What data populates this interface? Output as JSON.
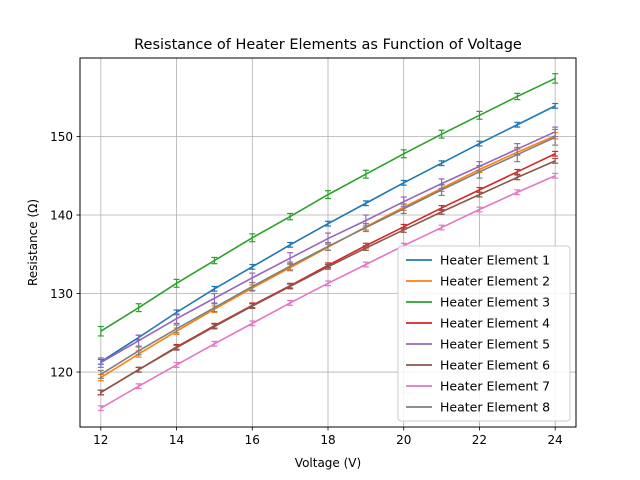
{
  "chart_data": {
    "type": "line",
    "title": "Resistance of Heater Elements as Function of Voltage",
    "xlabel": "Voltage (V)",
    "ylabel": "Resistance (Ω)",
    "xlim": [
      11.45,
      24.55
    ],
    "ylim": [
      113.0,
      160.0
    ],
    "x_ticks": [
      12,
      14,
      16,
      18,
      20,
      22,
      24
    ],
    "y_ticks": [
      120,
      130,
      140,
      150
    ],
    "grid": true,
    "legend_position": "lower-right",
    "x": [
      12,
      13,
      14,
      15,
      16,
      17,
      18,
      19,
      20,
      21,
      22,
      23,
      24
    ],
    "series": [
      {
        "name": "Heater Element 1",
        "color": "#1f77b4",
        "values": [
          121.3,
          124.4,
          127.6,
          130.6,
          133.4,
          136.2,
          138.9,
          141.5,
          144.1,
          146.6,
          149.1,
          151.5,
          153.9
        ],
        "errors": [
          0.3,
          0.3,
          0.3,
          0.3,
          0.3,
          0.3,
          0.3,
          0.3,
          0.3,
          0.3,
          0.3,
          0.3,
          0.3
        ]
      },
      {
        "name": "Heater Element 2",
        "color": "#ff7f0e",
        "values": [
          119.3,
          122.3,
          125.2,
          128.0,
          130.7,
          133.3,
          135.9,
          138.5,
          141.0,
          143.4,
          145.8,
          148.0,
          150.1
        ],
        "errors": [
          0.4,
          0.4,
          0.4,
          0.4,
          0.4,
          0.4,
          0.4,
          0.4,
          0.4,
          0.4,
          0.4,
          0.4,
          0.4
        ]
      },
      {
        "name": "Heater Element 3",
        "color": "#2ca02c",
        "values": [
          125.2,
          128.2,
          131.3,
          134.2,
          137.1,
          139.8,
          142.6,
          145.2,
          147.8,
          150.3,
          152.7,
          155.1,
          157.4
        ],
        "errors": [
          0.6,
          0.5,
          0.5,
          0.4,
          0.5,
          0.4,
          0.5,
          0.5,
          0.5,
          0.5,
          0.5,
          0.4,
          0.6
        ]
      },
      {
        "name": "Heater Element 4",
        "color": "#d62728",
        "values": [
          117.4,
          120.3,
          123.2,
          125.9,
          128.5,
          131.0,
          133.6,
          136.1,
          138.5,
          140.9,
          143.2,
          145.5,
          147.8
        ],
        "errors": [
          0.3,
          0.3,
          0.3,
          0.3,
          0.3,
          0.3,
          0.3,
          0.3,
          0.3,
          0.3,
          0.3,
          0.3,
          0.3
        ]
      },
      {
        "name": "Heater Element 5",
        "color": "#9467bd",
        "values": [
          121.2,
          124.0,
          126.8,
          129.4,
          132.0,
          134.5,
          137.0,
          139.3,
          141.7,
          144.0,
          146.2,
          148.4,
          150.6
        ],
        "errors": [
          0.6,
          0.7,
          0.6,
          0.6,
          0.6,
          0.7,
          0.7,
          0.7,
          0.6,
          0.6,
          0.6,
          0.7,
          0.6
        ]
      },
      {
        "name": "Heater Element 6",
        "color": "#8c564b",
        "values": [
          117.4,
          120.3,
          123.1,
          125.8,
          128.4,
          130.9,
          133.4,
          135.8,
          138.1,
          140.4,
          142.6,
          144.8,
          146.9
        ],
        "errors": [
          0.3,
          0.3,
          0.3,
          0.3,
          0.3,
          0.3,
          0.3,
          0.3,
          0.3,
          0.3,
          0.3,
          0.3,
          0.3
        ]
      },
      {
        "name": "Heater Element 7",
        "color": "#e377c2",
        "values": [
          115.4,
          118.2,
          120.9,
          123.6,
          126.2,
          128.8,
          131.3,
          133.7,
          136.1,
          138.4,
          140.7,
          142.9,
          145.0
        ],
        "errors": [
          0.3,
          0.3,
          0.3,
          0.3,
          0.3,
          0.3,
          0.3,
          0.3,
          0.3,
          0.3,
          0.3,
          0.3,
          0.3
        ]
      },
      {
        "name": "Heater Element 8",
        "color": "#7f7f7f",
        "values": [
          119.7,
          122.7,
          125.5,
          128.2,
          130.9,
          133.5,
          136.0,
          138.4,
          140.8,
          143.2,
          145.5,
          147.7,
          149.9
        ],
        "errors": [
          0.5,
          0.5,
          0.5,
          0.5,
          0.5,
          0.5,
          0.5,
          0.5,
          0.6,
          0.7,
          0.8,
          0.9,
          1.0
        ]
      }
    ]
  }
}
